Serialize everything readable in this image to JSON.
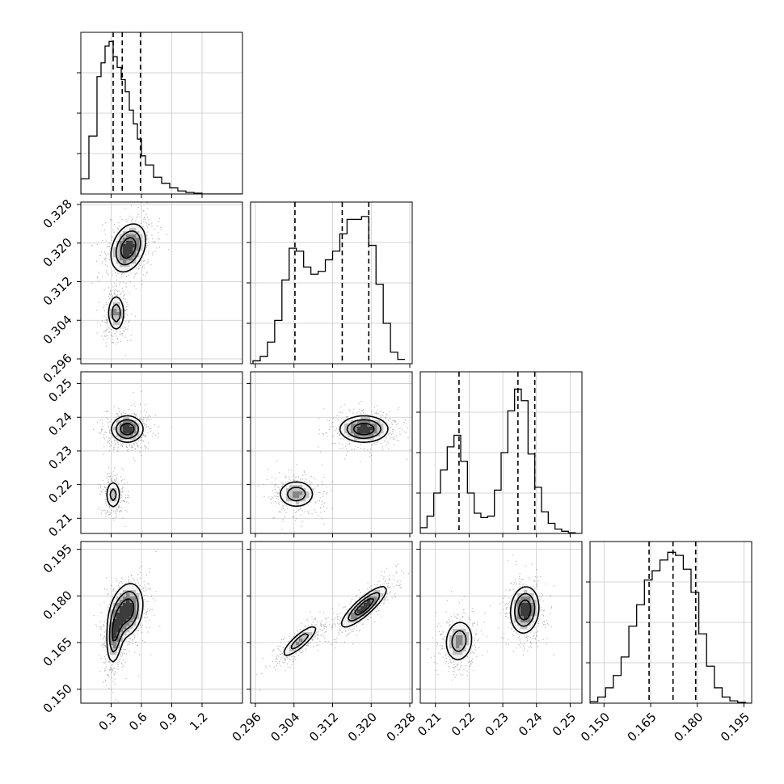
{
  "chart_data": {
    "type": "corner",
    "grid": true,
    "parameters": [
      {
        "range": [
          0.0,
          1.6
        ],
        "ticks": [
          0.3,
          0.6,
          0.9,
          1.2
        ],
        "tick_labels": [
          "0.3",
          "0.6",
          "0.9",
          "1.2"
        ],
        "quantiles": [
          0.32,
          0.41,
          0.59
        ],
        "hist_bins": [
          0.0,
          0.08,
          0.16,
          0.2,
          0.24,
          0.28,
          0.32,
          0.36,
          0.4,
          0.44,
          0.48,
          0.52,
          0.56,
          0.6,
          0.64,
          0.72,
          0.8,
          0.88,
          0.96,
          1.04,
          1.12,
          1.2,
          1.6
        ],
        "hist_counts": [
          0.1,
          0.38,
          0.77,
          0.86,
          0.97,
          1.0,
          0.9,
          0.83,
          0.75,
          0.67,
          0.55,
          0.46,
          0.36,
          0.25,
          0.19,
          0.11,
          0.07,
          0.04,
          0.02,
          0.01,
          0.005,
          0.0
        ],
        "hist_max": 1.06
      },
      {
        "range": [
          0.295,
          0.3285
        ],
        "ticks": [
          0.296,
          0.304,
          0.312,
          0.32,
          0.328
        ],
        "tick_labels": [
          "0.296",
          "0.304",
          "0.312",
          "0.320",
          "0.328"
        ],
        "quantiles": [
          0.3042,
          0.314,
          0.3195
        ],
        "hist_bins": [
          0.2955,
          0.297,
          0.2985,
          0.3,
          0.3015,
          0.303,
          0.3045,
          0.306,
          0.3075,
          0.309,
          0.3105,
          0.312,
          0.3135,
          0.315,
          0.3165,
          0.318,
          0.3195,
          0.321,
          0.3225,
          0.324,
          0.3255,
          0.327
        ],
        "hist_counts": [
          0.02,
          0.05,
          0.15,
          0.3,
          0.58,
          0.8,
          0.78,
          0.67,
          0.62,
          0.64,
          0.72,
          0.78,
          0.9,
          1.0,
          1.0,
          1.02,
          0.82,
          0.55,
          0.28,
          0.08,
          0.03
        ],
        "hist_max": 1.12
      },
      {
        "range": [
          0.2055,
          0.2535
        ],
        "ticks": [
          0.21,
          0.22,
          0.23,
          0.24,
          0.25
        ],
        "tick_labels": [
          "0.21",
          "0.22",
          "0.23",
          "0.24",
          "0.25"
        ],
        "quantiles": [
          0.217,
          0.2345,
          0.2395
        ],
        "hist_bins": [
          0.2055,
          0.2075,
          0.2095,
          0.2115,
          0.2135,
          0.2155,
          0.2175,
          0.2195,
          0.2215,
          0.2235,
          0.2255,
          0.2275,
          0.2295,
          0.2315,
          0.2335,
          0.2355,
          0.2375,
          0.2395,
          0.2415,
          0.2435,
          0.2455,
          0.2475,
          0.2495,
          0.2515,
          0.2535
        ],
        "hist_counts": [
          0.04,
          0.12,
          0.28,
          0.44,
          0.6,
          0.68,
          0.5,
          0.28,
          0.14,
          0.11,
          0.12,
          0.3,
          0.56,
          0.85,
          1.0,
          0.92,
          0.55,
          0.32,
          0.15,
          0.07,
          0.03,
          0.015,
          0.005,
          0.0
        ],
        "hist_max": 1.12
      },
      {
        "range": [
          0.1455,
          0.1975
        ],
        "ticks": [
          0.15,
          0.165,
          0.18,
          0.195
        ],
        "tick_labels": [
          "0.150",
          "0.165",
          "0.180",
          "0.195"
        ],
        "quantiles": [
          0.1645,
          0.1722,
          0.1795
        ],
        "hist_bins": [
          0.1455,
          0.148,
          0.1505,
          0.153,
          0.1555,
          0.158,
          0.1605,
          0.163,
          0.1655,
          0.168,
          0.1705,
          0.173,
          0.1755,
          0.178,
          0.1805,
          0.183,
          0.1855,
          0.188,
          0.1905,
          0.193,
          0.1955,
          0.1975
        ],
        "hist_counts": [
          0.01,
          0.04,
          0.1,
          0.18,
          0.3,
          0.5,
          0.64,
          0.8,
          0.86,
          0.93,
          0.98,
          0.96,
          0.87,
          0.72,
          0.45,
          0.24,
          0.1,
          0.04,
          0.015,
          0.005,
          0.0
        ],
        "hist_max": 1.05
      }
    ],
    "pairs": [
      {
        "row": 1,
        "col": 0,
        "modes": [
          {
            "mx": 0.35,
            "my": 0.3055,
            "sx": 0.055,
            "sy": 0.0025,
            "rho": 0.0,
            "w": 0.42
          },
          {
            "mx": 0.47,
            "my": 0.319,
            "sx": 0.11,
            "sy": 0.0032,
            "rho": 0.3,
            "w": 0.58
          }
        ]
      },
      {
        "row": 2,
        "col": 0,
        "modes": [
          {
            "mx": 0.32,
            "my": 0.217,
            "sx": 0.048,
            "sy": 0.0028,
            "rho": 0.0,
            "w": 0.4
          },
          {
            "mx": 0.46,
            "my": 0.2365,
            "sx": 0.1,
            "sy": 0.0025,
            "rho": 0.0,
            "w": 0.6
          }
        ]
      },
      {
        "row": 2,
        "col": 1,
        "modes": [
          {
            "mx": 0.3045,
            "my": 0.2172,
            "sx": 0.0025,
            "sy": 0.0027,
            "rho": 0.0,
            "w": 0.42
          },
          {
            "mx": 0.3185,
            "my": 0.2365,
            "sx": 0.0032,
            "sy": 0.0025,
            "rho": 0.0,
            "w": 0.58
          }
        ]
      },
      {
        "row": 3,
        "col": 0,
        "modes": [
          {
            "mx": 0.33,
            "my": 0.1665,
            "sx": 0.05,
            "sy": 0.0058,
            "rho": 0.2,
            "w": 0.42
          },
          {
            "mx": 0.46,
            "my": 0.1755,
            "sx": 0.1,
            "sy": 0.0055,
            "rho": 0.2,
            "w": 0.58
          }
        ]
      },
      {
        "row": 3,
        "col": 1,
        "modes": [
          {
            "mx": 0.3052,
            "my": 0.1655,
            "sx": 0.0025,
            "sy": 0.0035,
            "rho": 0.85,
            "w": 0.42
          },
          {
            "mx": 0.3185,
            "my": 0.1765,
            "sx": 0.003,
            "sy": 0.0042,
            "rho": 0.85,
            "w": 0.58
          }
        ]
      },
      {
        "row": 3,
        "col": 2,
        "modes": [
          {
            "mx": 0.217,
            "my": 0.1655,
            "sx": 0.0028,
            "sy": 0.0045,
            "rho": 0.1,
            "w": 0.42
          },
          {
            "mx": 0.2365,
            "my": 0.1755,
            "sx": 0.0027,
            "sy": 0.0048,
            "rho": 0.1,
            "w": 0.58
          }
        ]
      }
    ],
    "contour_levels": [
      0.3,
      0.55,
      0.8
    ]
  }
}
